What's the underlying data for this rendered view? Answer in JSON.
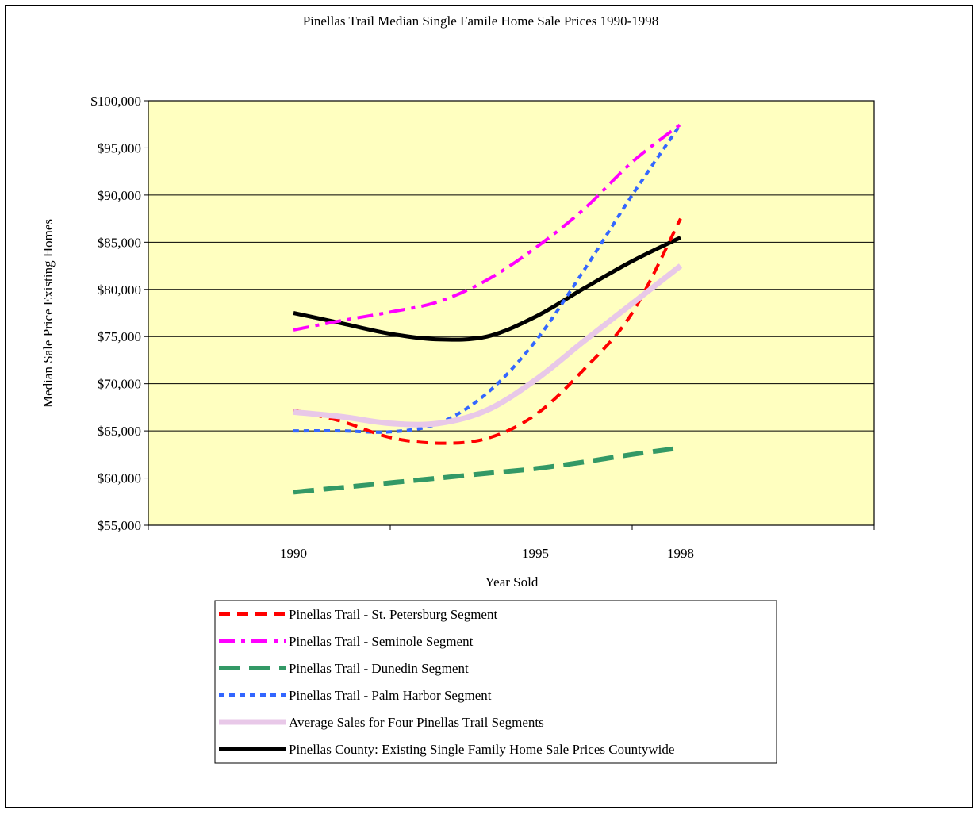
{
  "chart_data": {
    "type": "line",
    "title": "Pinellas Trail Median Single Famile Home Sale Prices 1990-1998",
    "xlabel": "Year Sold",
    "ylabel": "Median Sale Price Existing Homes",
    "x": [
      1990,
      1991,
      1992,
      1993,
      1994,
      1995,
      1996,
      1997,
      1998
    ],
    "x_tick_labels": [
      "1990",
      "1995",
      "1998"
    ],
    "x_tick_label_positions": [
      1990,
      1995,
      1998
    ],
    "xlim": [
      1987,
      2002
    ],
    "ylim": [
      55000,
      100000
    ],
    "y_tick_values": [
      55000,
      60000,
      65000,
      70000,
      75000,
      80000,
      85000,
      90000,
      95000,
      100000
    ],
    "y_tick_labels": [
      "$55,000",
      "$60,000",
      "$65,000",
      "$70,000",
      "$75,000",
      "$80,000",
      "$85,000",
      "$90,000",
      "$95,000",
      "$100,000"
    ],
    "grid": true,
    "plot_background": "#ffffc0",
    "legend_position": "bottom",
    "series": [
      {
        "name": "Pinellas Trail -  St. Petersburg Segment",
        "color": "#ff0000",
        "style": "dash",
        "values": [
          67200,
          66000,
          64300,
          63700,
          64200,
          66700,
          71500,
          77500,
          87500
        ]
      },
      {
        "name": "Pinellas Trail - Seminole Segment",
        "color": "#ff00ff",
        "style": "dashdot",
        "values": [
          75700,
          76700,
          77600,
          78700,
          81000,
          84400,
          88500,
          93500,
          97500
        ]
      },
      {
        "name": "Pinellas Trail - Dunedin Segment",
        "color": "#339966",
        "style": "longdash",
        "values": [
          58500,
          59000,
          59500,
          60000,
          60500,
          61000,
          61700,
          62500,
          63200
        ]
      },
      {
        "name": "Pinellas Trail - Palm Harbor Segment",
        "color": "#3366ff",
        "style": "dot",
        "values": [
          65000,
          65000,
          64900,
          65800,
          69000,
          74500,
          82000,
          90000,
          97500
        ]
      },
      {
        "name": "Average Sales for Four Pinellas Trail Segments",
        "color": "#e8c8e8",
        "style": "solid-thick",
        "values": [
          67000,
          66500,
          65800,
          65800,
          67200,
          70400,
          74500,
          78500,
          82500
        ]
      },
      {
        "name": "Pinellas County: Existing Single Family Home Sale Prices Countywide",
        "color": "#000000",
        "style": "solid",
        "values": [
          77500,
          76400,
          75300,
          74700,
          75000,
          77100,
          80100,
          83000,
          85500
        ]
      }
    ]
  }
}
